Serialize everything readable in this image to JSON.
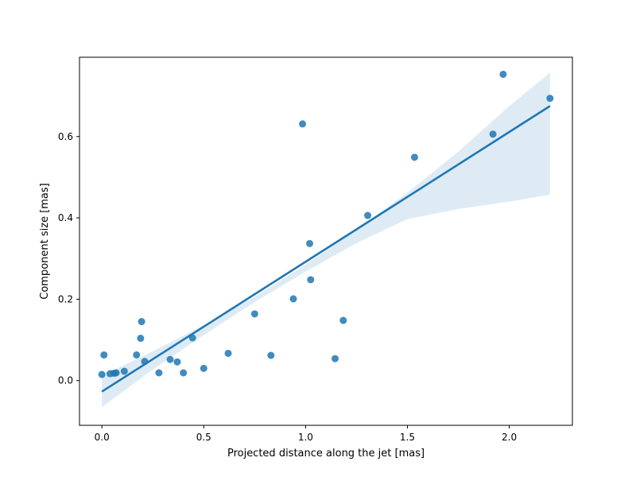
{
  "chart_data": {
    "type": "scatter",
    "title": "",
    "xlabel": "Projected distance along the jet [mas]",
    "ylabel": "Component size [mas]",
    "xlim": [
      -0.11,
      2.31
    ],
    "ylim": [
      -0.11,
      0.795
    ],
    "grid": false,
    "legend": "none",
    "xticks": [
      {
        "value": 0.0,
        "label": "0.0"
      },
      {
        "value": 0.5,
        "label": "0.5"
      },
      {
        "value": 1.0,
        "label": "1.0"
      },
      {
        "value": 1.5,
        "label": "1.5"
      },
      {
        "value": 2.0,
        "label": "2.0"
      }
    ],
    "yticks": [
      {
        "value": 0.0,
        "label": "0.0"
      },
      {
        "value": 0.2,
        "label": "0.2"
      },
      {
        "value": 0.4,
        "label": "0.4"
      },
      {
        "value": 0.6,
        "label": "0.6"
      }
    ],
    "points": {
      "x": [
        0.0,
        0.01,
        0.04,
        0.06,
        0.07,
        0.11,
        0.17,
        0.19,
        0.195,
        0.21,
        0.28,
        0.335,
        0.37,
        0.4,
        0.445,
        0.5,
        0.62,
        0.75,
        0.83,
        0.94,
        0.985,
        1.02,
        1.025,
        1.145,
        1.185,
        1.305,
        1.535,
        1.92,
        1.97,
        2.2
      ],
      "y": [
        0.015,
        0.063,
        0.017,
        0.018,
        0.019,
        0.023,
        0.063,
        0.104,
        0.145,
        0.047,
        0.019,
        0.052,
        0.046,
        0.019,
        0.105,
        0.03,
        0.067,
        0.164,
        0.062,
        0.201,
        0.631,
        0.337,
        0.248,
        0.054,
        0.148,
        0.406,
        0.549,
        0.606,
        0.753,
        0.694
      ]
    },
    "regression": {
      "x": [
        0.0,
        2.2
      ],
      "y": [
        -0.027,
        0.675
      ]
    },
    "confidence_band": {
      "x": [
        0.0,
        0.25,
        0.5,
        0.75,
        1.0,
        1.25,
        1.5,
        1.75,
        2.0,
        2.2
      ],
      "lower": [
        -0.065,
        0.027,
        0.112,
        0.193,
        0.268,
        0.338,
        0.397,
        0.422,
        0.44,
        0.457
      ],
      "upper": [
        0.012,
        0.072,
        0.136,
        0.206,
        0.285,
        0.371,
        0.462,
        0.563,
        0.675,
        0.757
      ]
    },
    "colors": {
      "points": "#1f77b4",
      "line": "#1f77b4",
      "band": "#1f77b4"
    }
  }
}
